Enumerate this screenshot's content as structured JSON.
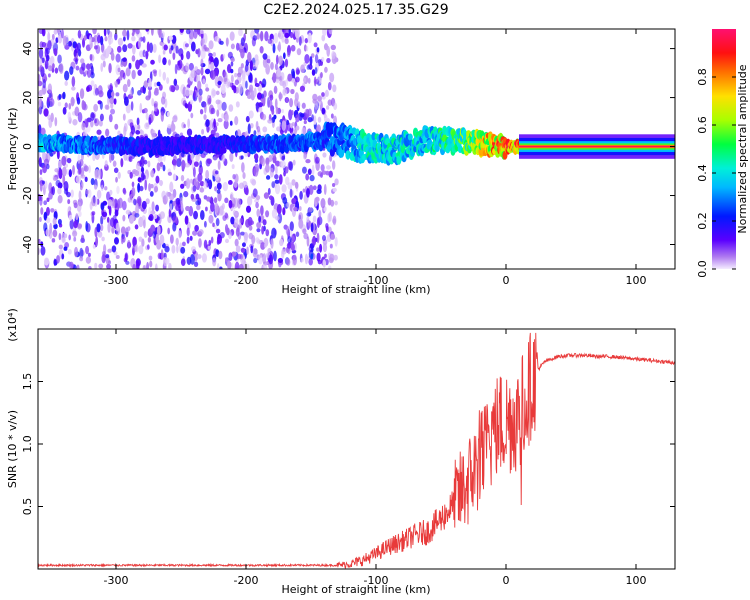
{
  "title": "C2E2.2024.025.17.35.G29",
  "chart_data": [
    {
      "type": "heatmap",
      "xlabel": "Height of straight line (km)",
      "ylabel": "Frequency (Hz)",
      "xlim": [
        -360,
        130
      ],
      "ylim": [
        -50,
        48
      ],
      "xticks": [
        -300,
        -200,
        -100,
        0,
        100
      ],
      "yticks": [
        -40,
        -20,
        0,
        20,
        40
      ],
      "colorbar": {
        "label": "Normalized spectral amplitude",
        "range": [
          0,
          1
        ],
        "ticks": [
          "0.0",
          "0.2",
          "0.4",
          "0.6",
          "0.8"
        ],
        "tick_values": [
          0.0,
          0.2,
          0.4,
          0.6,
          0.8
        ]
      },
      "description_points": [
        {
          "x": -340,
          "y": 1,
          "amp": 0.35
        },
        {
          "x": -270,
          "y": 0,
          "amp": 0.2
        },
        {
          "x": -220,
          "y": 1,
          "amp": 0.22
        },
        {
          "x": -170,
          "y": 1,
          "amp": 0.3
        },
        {
          "x": -130,
          "y": 3,
          "amp": 0.3
        },
        {
          "x": -110,
          "y": 0,
          "amp": 0.45
        },
        {
          "x": -90,
          "y": -2,
          "amp": 0.45
        },
        {
          "x": -60,
          "y": 3,
          "amp": 0.45
        },
        {
          "x": -30,
          "y": 2,
          "amp": 0.6
        },
        {
          "x": -15,
          "y": 1,
          "amp": 0.8
        },
        {
          "x": 0,
          "y": 0,
          "amp": 0.9
        },
        {
          "x": 20,
          "y": 0,
          "amp": 0.95
        },
        {
          "x": 130,
          "y": 0,
          "amp": 0.95
        }
      ]
    },
    {
      "type": "line",
      "xlabel": "Height of straight line (km)",
      "ylabel": "SNR (10 * v/v)",
      "yscale_label": "(x10⁴)",
      "xlim": [
        -360,
        130
      ],
      "ylim": [
        0,
        1.92
      ],
      "xticks": [
        -300,
        -200,
        -100,
        0,
        100
      ],
      "yticks": [
        0.5,
        1.0,
        1.5
      ],
      "ytick_labels": [
        "0.5",
        "1.0",
        "1.5"
      ],
      "series": [
        {
          "color": "#e83a3a",
          "x": [
            -360,
            -300,
            -250,
            -200,
            -150,
            -130,
            -120,
            -110,
            -100,
            -90,
            -80,
            -70,
            -60,
            -50,
            -40,
            -30,
            -25,
            -20,
            -15,
            -12,
            -10,
            -5,
            0,
            5,
            10,
            15,
            20,
            25,
            30,
            40,
            50,
            60,
            70,
            80,
            90,
            100,
            110,
            120,
            130
          ],
          "y": [
            0.03,
            0.03,
            0.03,
            0.03,
            0.03,
            0.03,
            0.04,
            0.07,
            0.12,
            0.18,
            0.22,
            0.27,
            0.3,
            0.4,
            0.52,
            0.68,
            0.78,
            0.85,
            0.95,
            1.02,
            1.1,
            1.15,
            1.18,
            1.2,
            1.22,
            1.35,
            1.5,
            1.6,
            1.66,
            1.7,
            1.71,
            1.71,
            1.7,
            1.7,
            1.69,
            1.68,
            1.67,
            1.66,
            1.65
          ]
        }
      ]
    }
  ]
}
